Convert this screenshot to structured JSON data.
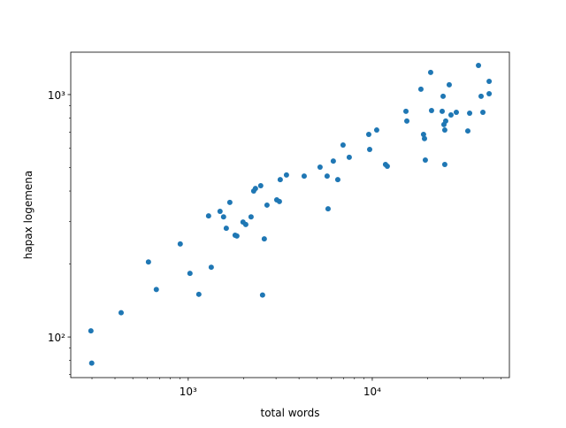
{
  "chart_data": {
    "type": "scatter",
    "xlabel": "total words",
    "ylabel": "hapax logemena",
    "xscale": "log",
    "yscale": "log",
    "color": "#1f77b4",
    "xlim": [
      230,
      55600
    ],
    "ylim": [
      68,
      1496
    ],
    "xticks": [
      {
        "value": 1000,
        "label": "10³"
      },
      {
        "value": 10000,
        "label": "10⁴"
      }
    ],
    "yticks": [
      {
        "value": 100,
        "label": "10²"
      },
      {
        "value": 1000,
        "label": "10³"
      }
    ],
    "xminorticks": [
      300,
      400,
      500,
      600,
      700,
      800,
      900,
      2000,
      3000,
      4000,
      5000,
      6000,
      7000,
      8000,
      9000,
      20000,
      30000,
      40000,
      50000
    ],
    "yminorticks": [
      70,
      80,
      90,
      200,
      300,
      400,
      500,
      600,
      700,
      800,
      900
    ],
    "x": [
      296,
      299,
      432,
      608,
      671,
      905,
      1022,
      1142,
      1290,
      1334,
      1489,
      1556,
      1610,
      1683,
      1798,
      1838,
      1985,
      2054,
      2195,
      2268,
      2319,
      2477,
      2534,
      2590,
      2679,
      3027,
      3129,
      3162,
      3418,
      4266,
      5204,
      5685,
      5752,
      6142,
      6496,
      6939,
      7498,
      9570,
      9679,
      10570,
      11800,
      12070,
      15240,
      15410,
      18380,
      18990,
      19220,
      19420,
      20760,
      20990,
      23980,
      24260,
      24510,
      24770,
      24770,
      25060,
      26190,
      26780,
      28620,
      33050,
      33810,
      37760,
      39020,
      39910,
      43150,
      43150
    ],
    "values": [
      106,
      78,
      126,
      204,
      157,
      242,
      183,
      150,
      316,
      194,
      330,
      313,
      281,
      359,
      263,
      261,
      298,
      291,
      313,
      400,
      410,
      421,
      149,
      254,
      350,
      368,
      362,
      446,
      466,
      461,
      502,
      461,
      338,
      532,
      446,
      619,
      551,
      685,
      594,
      714,
      515,
      506,
      853,
      778,
      1052,
      685,
      658,
      537,
      1234,
      859,
      853,
      984,
      752,
      515,
      714,
      778,
      1097,
      824,
      845,
      708,
      838,
      1319,
      984,
      845,
      1134,
      1008
    ]
  }
}
